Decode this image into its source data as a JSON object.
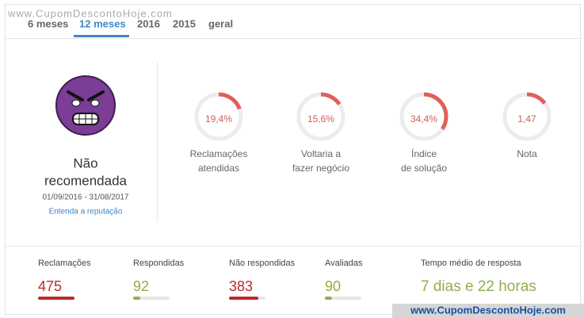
{
  "watermark_top": "www.CupomDescontoHoje.com",
  "watermark_bottom": "www.CupomDescontoHoje.com",
  "tabs": [
    "6 meses",
    "12 meses",
    "2016",
    "2015",
    "geral"
  ],
  "status": {
    "title_lines": [
      "Não",
      "recomendada"
    ],
    "period": "01/09/2016 - 31/08/2017",
    "link": "Entenda a reputação"
  },
  "indicators": [
    {
      "value": 19.4,
      "label": "19,4%",
      "caption": [
        "Reclamações",
        "atendidas"
      ]
    },
    {
      "value": 15.6,
      "label": "15,6%",
      "caption": [
        "Voltaria a",
        "fazer negócio"
      ]
    },
    {
      "value": 34.4,
      "label": "34,4%",
      "caption": [
        "Índice",
        "de solução"
      ]
    },
    {
      "value": 1.47,
      "label": "1,47",
      "caption": [
        "Nota"
      ]
    }
  ],
  "stats": [
    {
      "name": "Reclamações",
      "value": 475,
      "color": "#c0282e"
    },
    {
      "name": "Respondidas",
      "value": 92,
      "color": "#8fb04a"
    },
    {
      "name": "Não respondidas",
      "value": 383,
      "color": "#c0282e"
    },
    {
      "name": "Avaliadas",
      "value": 90,
      "color": "#8fb04a"
    }
  ],
  "response_time": {
    "name": "Tempo médio de resposta",
    "value": "7 dias e 22 horas"
  }
}
